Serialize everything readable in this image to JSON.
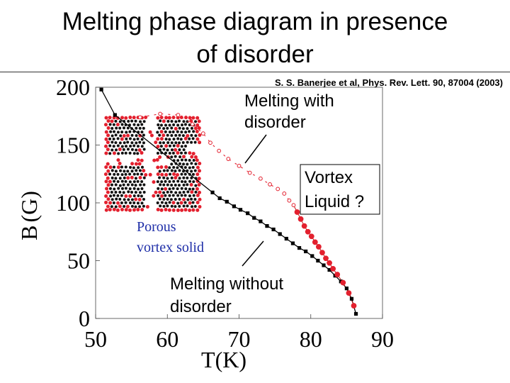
{
  "slide": {
    "title": "Melting phase diagram in presence\nof disorder"
  },
  "chart_data": {
    "type": "scatter",
    "title": "Melting phase diagram in presence of disorder",
    "citation": "S. S. Banerjee et al, Phys. Rev. Lett. 90, 87004 (2003)",
    "xlabel": "T(K)",
    "ylabel": "B (G)",
    "ylabel_parts": [
      "B",
      "(",
      "G",
      ")"
    ],
    "xlim": [
      50,
      90
    ],
    "ylim": [
      0,
      200
    ],
    "xticks": [
      50,
      60,
      70,
      80,
      90
    ],
    "yticks": [
      0,
      50,
      100,
      150,
      200
    ],
    "series": [
      {
        "name": "Melting without disorder",
        "color": "#000000",
        "marker": "square",
        "x": [
          50.8,
          52.7,
          66.3,
          67.3,
          68.3,
          69.3,
          70.2,
          71.2,
          72.1,
          73.0,
          73.9,
          74.8,
          75.7,
          76.6,
          77.5,
          78.4,
          79.3,
          80.2,
          81.0,
          81.8,
          82.6,
          83.4,
          84.2,
          85.0,
          85.7,
          86.3
        ],
        "y": [
          198,
          176,
          109,
          104,
          101,
          97,
          94,
          91,
          87,
          84,
          80,
          77,
          73,
          69,
          65,
          61,
          58,
          54,
          50,
          46,
          42,
          37,
          32,
          26,
          17,
          4
        ]
      },
      {
        "name": "Melting with disorder",
        "color": "#e3202e",
        "marker": "circle",
        "x": [
          56.2,
          59.0,
          61.5,
          63.5,
          65.0,
          66.0,
          67.2,
          68.5,
          70.0,
          71.5,
          73.0,
          74.3,
          75.4,
          76.3,
          77.0,
          77.6,
          78.1,
          78.6,
          79.1,
          79.6,
          80.1,
          80.6,
          81.1,
          81.6,
          82.1,
          82.6,
          83.1,
          83.7,
          84.5,
          85.3,
          86.0
        ],
        "y": [
          174,
          177,
          176,
          168,
          160,
          152,
          145,
          138,
          132,
          126,
          121,
          116,
          112,
          108,
          102,
          98,
          92,
          86,
          80,
          75,
          71,
          66,
          62,
          57,
          52,
          48,
          43,
          38,
          31,
          22,
          11
        ]
      }
    ],
    "annotations": [
      "Melting with\ndisorder",
      "Vortex\nLiquid ?",
      "Porous\nvortex solid",
      "Melting without\ndisorder"
    ]
  }
}
